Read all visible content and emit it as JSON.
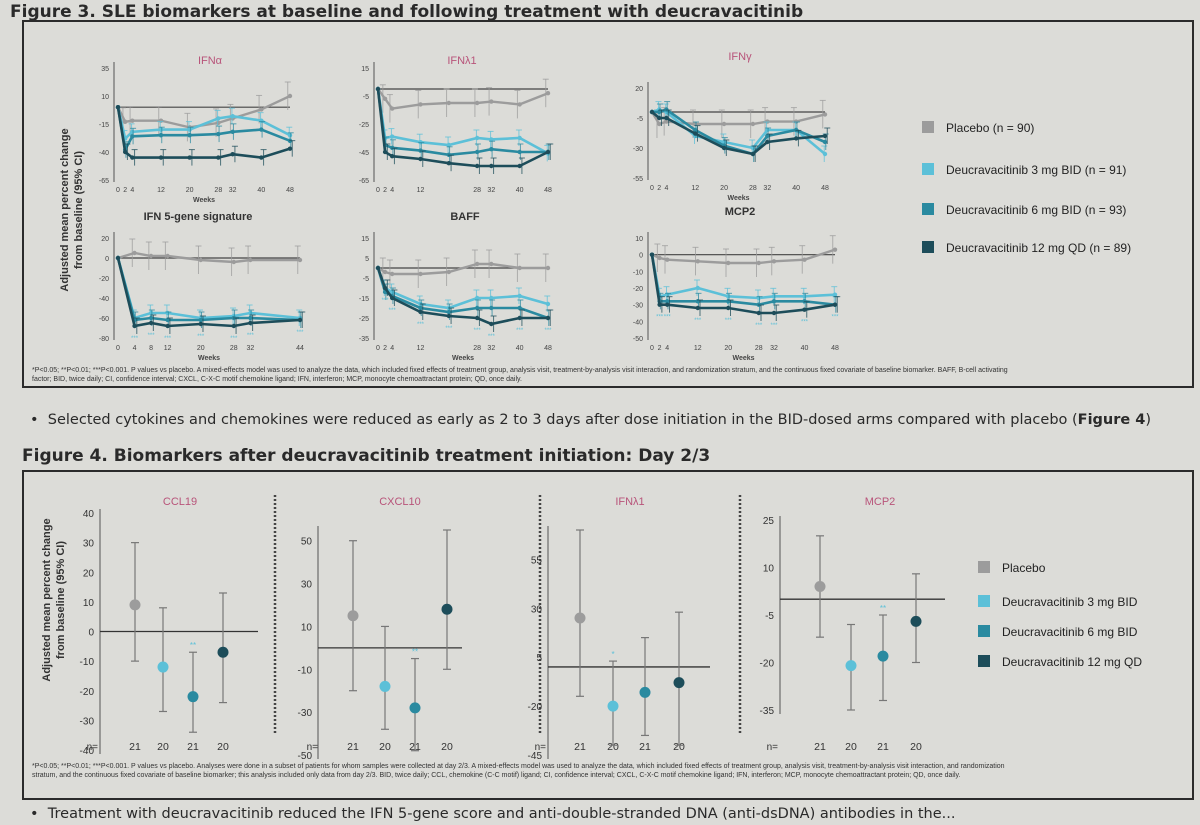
{
  "fig3": {
    "title": "Figure 3. SLE biomarkers at baseline and following treatment with deucravacitinib",
    "ylabel_line1": "Adjusted mean percent change",
    "ylabel_line2": "from baseline (95% CI)",
    "footnote_line1": "*P<0.05; **P<0.01; ***P<0.001. P values vs placebo. A mixed-effects model was used to analyze the data, which included fixed effects of treatment group, analysis visit, treatment-by-analysis visit interaction, and randomization stratum, and the continuous fixed covariate of baseline biomarker. BAFF, B-cell activating",
    "footnote_line2": "factor; BID, twice daily; CI, confidence interval; CXCL, C-X-C motif chemokine ligand; IFN, interferon; MCP, monocyte chemoattractant protein; QD, once daily.",
    "legend": [
      {
        "label": "Placebo (n = 90)",
        "color": "#9c9c9c"
      },
      {
        "label": "Deucravacitinib 3 mg BID (n = 91)",
        "color": "#5cc0d8"
      },
      {
        "label": "Deucravacitinib 6 mg BID (n = 93)",
        "color": "#2a8aa0"
      },
      {
        "label": "Deucravacitinib 12 mg QD (n = 89)",
        "color": "#1d4d5a"
      }
    ]
  },
  "bullet1": {
    "text": "Selected cytokines and chemokines were reduced as early as 2 to 3 days after dose initiation in the BID-dosed arms compared with placebo (",
    "bold": "Figure 4",
    "end": ")"
  },
  "fig4": {
    "title": "Figure 4. Biomarkers after deucravacitinib treatment initiation: Day 2/3",
    "ylabel_line1": "Adjusted mean percent change",
    "ylabel_line2": "from baseline (95% CI)",
    "n_label": "n=",
    "footnote_line1": "*P<0.05; **P<0.01; ***P<0.001. P values vs placebo. Analyses were done in a subset of patients for whom samples were collected at day 2/3. A mixed-effects model was used to analyze the data, which included fixed effects of treatment group, analysis visit, treatment-by-analysis visit interaction, and randomization",
    "footnote_line2": "stratum, and the continuous fixed covariate of baseline biomarker; this analysis included only data from day 2/3. BID, twice daily; CCL, chemokine (C-C motif) ligand; CI, confidence interval; CXCL, C-X-C motif chemokine ligand; IFN, interferon; MCP, monocyte chemoattractant protein; QD, once daily.",
    "legend": [
      {
        "label": "Placebo",
        "color": "#9c9c9c"
      },
      {
        "label": "Deucravacitinib 3 mg BID",
        "color": "#5cc0d8"
      },
      {
        "label": "Deucravacitinib 6 mg BID",
        "color": "#2a8aa0"
      },
      {
        "label": "Deucravacitinib 12 mg QD",
        "color": "#1d4d5a"
      }
    ]
  },
  "bullet2": {
    "text": "Treatment with deucravacitinib reduced the IFN 5-gene score and anti-double-stranded DNA (anti-dsDNA) antibodies in the..."
  },
  "chart_data": [
    {
      "type": "line",
      "title": "IFNα",
      "xlabel": "Weeks",
      "x": [
        0,
        2,
        4,
        12,
        20,
        28,
        32,
        40,
        48
      ],
      "xticks": [
        "0",
        "2",
        "4",
        "12",
        "20",
        "28",
        "32",
        "40",
        "48"
      ],
      "yticks": [
        35,
        10,
        -15,
        -40,
        -65
      ],
      "ylim": [
        -65,
        35
      ],
      "series": [
        {
          "name": "Placebo",
          "values": [
            0,
            -13,
            -12,
            -12,
            -18,
            -14,
            -10,
            -2,
            10
          ]
        },
        {
          "name": "3 mg BID",
          "values": [
            0,
            -28,
            -22,
            -20,
            -20,
            -10,
            -8,
            -12,
            -25
          ]
        },
        {
          "name": "6 mg BID",
          "values": [
            0,
            -38,
            -26,
            -25,
            -25,
            -24,
            -22,
            -20,
            -30
          ]
        },
        {
          "name": "12 mg QD",
          "values": [
            0,
            -40,
            -45,
            -45,
            -45,
            -45,
            -42,
            -45,
            -37
          ]
        }
      ]
    },
    {
      "type": "line",
      "title": "IFNλ1",
      "xlabel": "",
      "x": [
        0,
        2,
        4,
        12,
        20,
        28,
        32,
        40,
        48
      ],
      "xticks": [
        "0",
        "2",
        "4",
        "12",
        "28",
        "32",
        "40",
        "48"
      ],
      "yticks": [
        15,
        -5,
        -25,
        -45,
        -65
      ],
      "ylim": [
        -65,
        15
      ],
      "series": [
        {
          "name": "Placebo",
          "values": [
            0,
            -7,
            -14,
            -11,
            -10,
            -10,
            -9,
            -11,
            -3
          ]
        },
        {
          "name": "3 mg BID",
          "values": [
            0,
            -35,
            -34,
            -38,
            -40,
            -35,
            -36,
            -35,
            -46
          ]
        },
        {
          "name": "6 mg BID",
          "values": [
            0,
            -40,
            -42,
            -44,
            -47,
            -45,
            -43,
            -45,
            -45
          ]
        },
        {
          "name": "12 mg QD",
          "values": [
            0,
            -45,
            -48,
            -50,
            -53,
            -55,
            -55,
            -55,
            -45
          ]
        }
      ]
    },
    {
      "type": "line",
      "title": "IFNγ",
      "xlabel": "Weeks",
      "x": [
        0,
        2,
        4,
        12,
        20,
        28,
        32,
        40,
        48
      ],
      "xticks": [
        "0",
        "2",
        "4",
        "12",
        "20",
        "28",
        "32",
        "40",
        "48"
      ],
      "yticks": [
        20,
        -5,
        -30,
        -55
      ],
      "ylim": [
        -55,
        20
      ],
      "series": [
        {
          "name": "Placebo",
          "values": [
            0,
            -10,
            -8,
            -10,
            -10,
            -10,
            -8,
            -8,
            -2
          ]
        },
        {
          "name": "3 mg BID",
          "values": [
            0,
            2,
            0,
            -20,
            -25,
            -30,
            -15,
            -15,
            -35
          ]
        },
        {
          "name": "6 mg BID",
          "values": [
            0,
            0,
            2,
            -15,
            -28,
            -35,
            -20,
            -15,
            -25
          ]
        },
        {
          "name": "12 mg QD",
          "values": [
            0,
            -5,
            -5,
            -18,
            -30,
            -35,
            -25,
            -22,
            -20
          ]
        }
      ]
    },
    {
      "type": "line",
      "title": "IFN 5-gene signature",
      "xlabel": "Weeks",
      "x": [
        0,
        4,
        8,
        12,
        20,
        28,
        32,
        44
      ],
      "xticks": [
        "0",
        "4",
        "8",
        "12",
        "20",
        "28",
        "32",
        "44"
      ],
      "yticks": [
        20,
        0,
        -20,
        -40,
        -60,
        -80
      ],
      "ylim": [
        -80,
        20
      ],
      "series": [
        {
          "name": "Placebo",
          "values": [
            0,
            5,
            2,
            2,
            -2,
            -4,
            -2,
            -2
          ]
        },
        {
          "name": "3 mg BID",
          "values": [
            0,
            -60,
            -55,
            -55,
            -60,
            -58,
            -55,
            -60
          ]
        },
        {
          "name": "6 mg BID",
          "values": [
            0,
            -62,
            -60,
            -62,
            -62,
            -60,
            -60,
            -62
          ]
        },
        {
          "name": "12 mg QD",
          "values": [
            0,
            -68,
            -65,
            -68,
            -66,
            -68,
            -65,
            -62
          ]
        }
      ]
    },
    {
      "type": "line",
      "title": "BAFF",
      "xlabel": "Weeks",
      "x": [
        0,
        2,
        4,
        12,
        20,
        28,
        32,
        40,
        48
      ],
      "xticks": [
        "0",
        "2",
        "4",
        "12",
        "28",
        "32",
        "40",
        "48"
      ],
      "yticks": [
        15,
        5,
        -5,
        -15,
        -25,
        -35
      ],
      "ylim": [
        -35,
        15
      ],
      "series": [
        {
          "name": "Placebo",
          "values": [
            0,
            -2,
            -3,
            -3,
            -2,
            2,
            2,
            0,
            0
          ]
        },
        {
          "name": "3 mg BID",
          "values": [
            0,
            -10,
            -12,
            -18,
            -20,
            -15,
            -15,
            -14,
            -18
          ]
        },
        {
          "name": "6 mg BID",
          "values": [
            0,
            -12,
            -14,
            -20,
            -22,
            -20,
            -20,
            -20,
            -25
          ]
        },
        {
          "name": "12 mg QD",
          "values": [
            0,
            -10,
            -15,
            -22,
            -24,
            -25,
            -28,
            -25,
            -25
          ]
        }
      ]
    },
    {
      "type": "line",
      "title": "MCP2",
      "xlabel": "Weeks",
      "x": [
        0,
        2,
        4,
        12,
        20,
        28,
        32,
        40,
        48
      ],
      "xticks": [
        "0",
        "2",
        "4",
        "12",
        "20",
        "28",
        "32",
        "40",
        "48"
      ],
      "yticks": [
        10,
        0,
        -10,
        -20,
        -30,
        -40,
        -50
      ],
      "ylim": [
        -50,
        10
      ],
      "series": [
        {
          "name": "Placebo",
          "values": [
            0,
            -2,
            -3,
            -4,
            -5,
            -5,
            -4,
            -3,
            3
          ]
        },
        {
          "name": "3 mg BID",
          "values": [
            0,
            -25,
            -24,
            -20,
            -25,
            -26,
            -25,
            -25,
            -24
          ]
        },
        {
          "name": "6 mg BID",
          "values": [
            0,
            -28,
            -28,
            -28,
            -28,
            -30,
            -28,
            -28,
            -30
          ]
        },
        {
          "name": "12 mg QD",
          "values": [
            0,
            -30,
            -30,
            -32,
            -32,
            -35,
            -35,
            -33,
            -30
          ]
        }
      ]
    },
    {
      "type": "scatter",
      "title": "CCL19",
      "categories": [
        "Placebo",
        "3 mg BID",
        "6 mg BID",
        "12 mg QD"
      ],
      "n": [
        "21",
        "20",
        "21",
        "20"
      ],
      "sig": [
        "",
        "",
        "**",
        ""
      ],
      "values": [
        9,
        -12,
        -22,
        -7
      ],
      "ci_low": [
        -10,
        -27,
        -34,
        -24
      ],
      "ci_high": [
        30,
        8,
        -7,
        13
      ],
      "yticks": [
        40,
        30,
        20,
        10,
        0,
        -10,
        -20,
        -30,
        -40
      ],
      "ylim": [
        -40,
        40
      ]
    },
    {
      "type": "scatter",
      "title": "CXCL10",
      "categories": [
        "Placebo",
        "3 mg BID",
        "6 mg BID",
        "12 mg QD"
      ],
      "n": [
        "21",
        "20",
        "21",
        "20"
      ],
      "sig": [
        "",
        "",
        "**",
        ""
      ],
      "values": [
        15,
        -18,
        -28,
        18
      ],
      "ci_low": [
        -20,
        -38,
        -48,
        -10
      ],
      "ci_high": [
        50,
        10,
        -5,
        55
      ],
      "yticks": [
        50,
        30,
        10,
        -10,
        -30,
        -50
      ],
      "ylim": [
        -50,
        55
      ]
    },
    {
      "type": "scatter",
      "title": "IFNλ1",
      "categories": [
        "Placebo",
        "3 mg BID",
        "6 mg BID",
        "12 mg QD"
      ],
      "n": [
        "21",
        "20",
        "21",
        "20"
      ],
      "sig": [
        "",
        "*",
        "",
        ""
      ],
      "values": [
        25,
        -20,
        -13,
        -8
      ],
      "ci_low": [
        -15,
        -40,
        -35,
        -40
      ],
      "ci_high": [
        70,
        3,
        15,
        28
      ],
      "yticks": [
        55,
        30,
        5,
        -20,
        -45
      ],
      "ylim": [
        -45,
        70
      ]
    },
    {
      "type": "scatter",
      "title": "MCP2",
      "categories": [
        "Placebo",
        "3 mg BID",
        "6 mg BID",
        "12 mg QD"
      ],
      "n": [
        "21",
        "20",
        "21",
        "20"
      ],
      "sig": [
        "",
        "",
        "**",
        ""
      ],
      "values": [
        4,
        -21,
        -18,
        -7
      ],
      "ci_low": [
        -12,
        -35,
        -32,
        -20
      ],
      "ci_high": [
        20,
        -8,
        -5,
        8
      ],
      "yticks": [
        25,
        10,
        -5,
        -20,
        -35
      ],
      "ylim": [
        -35,
        25
      ]
    }
  ]
}
